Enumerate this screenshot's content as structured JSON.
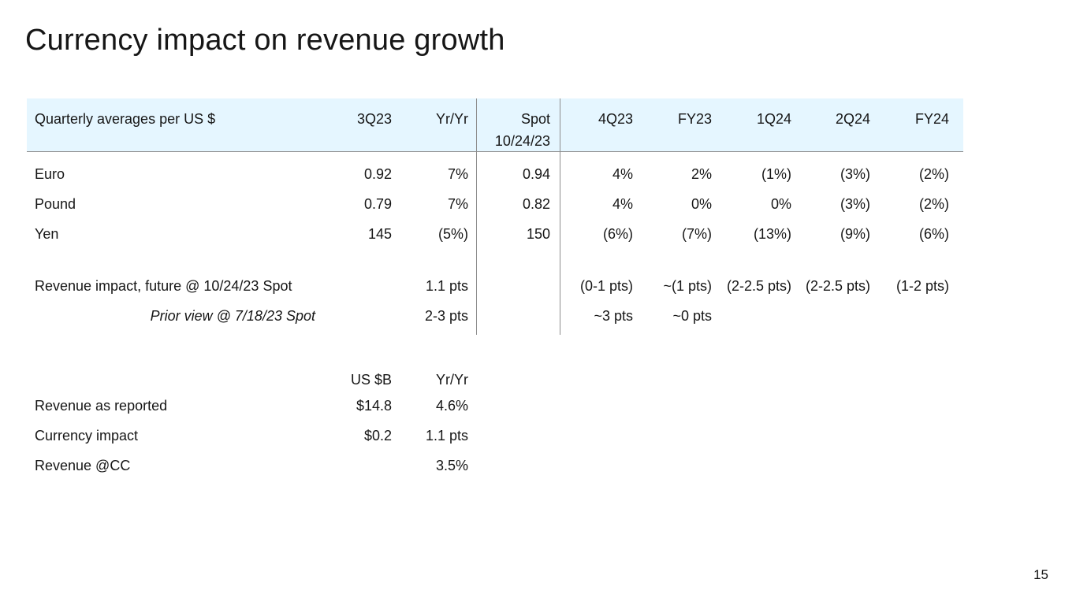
{
  "title": "Currency impact on revenue growth",
  "page_number": "15",
  "fx_table": {
    "header": {
      "label": "Quarterly averages per US $",
      "col_3q23": "3Q23",
      "col_yryr": "Yr/Yr",
      "col_spot_line1": "Spot",
      "col_spot_line2": "10/24/23",
      "col_4q23": "4Q23",
      "col_fy23": "FY23",
      "col_1q24": "1Q24",
      "col_2q24": "2Q24",
      "col_fy24": "FY24"
    },
    "rows": [
      {
        "label": "Euro",
        "q3": "0.92",
        "yy": "7%",
        "spot": "0.94",
        "q4": "4%",
        "fy23": "2%",
        "q1": "(1%)",
        "q2": "(3%)",
        "fy24": "(2%)"
      },
      {
        "label": "Pound",
        "q3": "0.79",
        "yy": "7%",
        "spot": "0.82",
        "q4": "4%",
        "fy23": "0%",
        "q1": "0%",
        "q2": "(3%)",
        "fy24": "(2%)"
      },
      {
        "label": "Yen",
        "q3": "145",
        "yy": "(5%)",
        "spot": "150",
        "q4": "(6%)",
        "fy23": "(7%)",
        "q1": "(13%)",
        "q2": "(9%)",
        "fy24": "(6%)"
      }
    ],
    "impact": {
      "label": "Revenue impact, future @ 10/24/23 Spot",
      "yy": "1.1 pts",
      "q4": "(0-1 pts)",
      "fy23": "~(1 pts)",
      "q1": "(2-2.5 pts)",
      "q2": "(2-2.5 pts)",
      "fy24": "(1-2 pts)"
    },
    "prior": {
      "label": "Prior view @ 7/18/23 Spot",
      "yy": "2-3 pts",
      "q4": "~3 pts",
      "fy23": "~0 pts"
    }
  },
  "revenue_table": {
    "header": {
      "usd": "US $B",
      "yy": "Yr/Yr"
    },
    "rows": [
      {
        "label": "Revenue as reported",
        "usd": "$14.8",
        "yy": "4.6%"
      },
      {
        "label": "Currency impact",
        "usd": "$0.2",
        "yy": "1.1 pts"
      },
      {
        "label": "Revenue @CC",
        "usd": "",
        "yy": "3.5%"
      }
    ]
  }
}
